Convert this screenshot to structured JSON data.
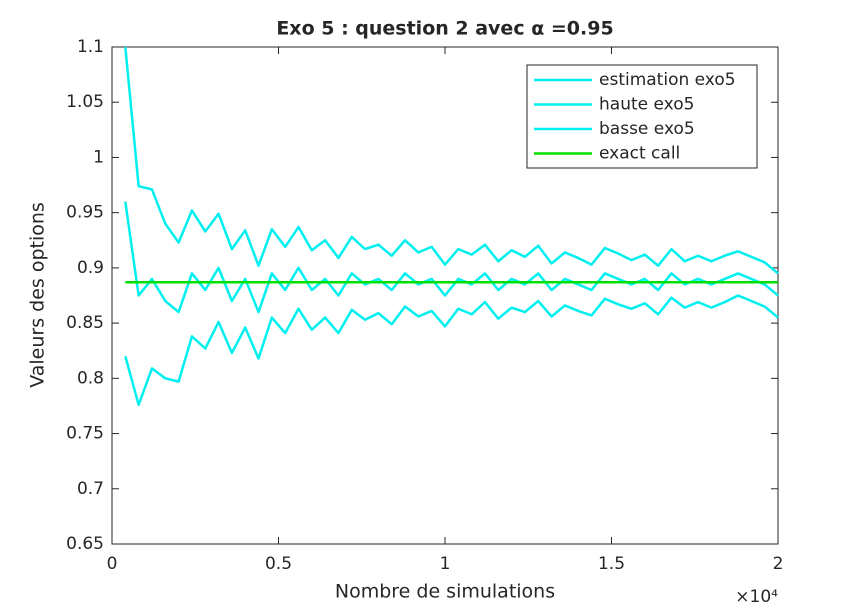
{
  "chart_data": {
    "type": "line",
    "title": "Exo 5 : question 2 avec α =0.95",
    "xlabel": "Nombre de simulations",
    "ylabel": "Valeurs des options",
    "x_multiplier": "×10⁴",
    "x": [
      400,
      800,
      1200,
      1600,
      2000,
      2400,
      2800,
      3200,
      3600,
      4000,
      4400,
      4800,
      5200,
      5600,
      6000,
      6400,
      6800,
      7200,
      7600,
      8000,
      8400,
      8800,
      9200,
      9600,
      10000,
      10400,
      10800,
      11200,
      11600,
      12000,
      12400,
      12800,
      13200,
      13600,
      14000,
      14400,
      14800,
      15200,
      15600,
      16000,
      16400,
      16800,
      17200,
      17600,
      18000,
      18400,
      18800,
      19200,
      19600,
      20000
    ],
    "series": [
      {
        "name": "estimation exo5",
        "color": "#00f0f0",
        "values": [
          0.96,
          0.875,
          0.89,
          0.87,
          0.86,
          0.895,
          0.88,
          0.9,
          0.87,
          0.89,
          0.86,
          0.895,
          0.88,
          0.9,
          0.88,
          0.89,
          0.875,
          0.895,
          0.885,
          0.89,
          0.88,
          0.895,
          0.885,
          0.89,
          0.875,
          0.89,
          0.885,
          0.895,
          0.88,
          0.89,
          0.885,
          0.895,
          0.88,
          0.89,
          0.885,
          0.88,
          0.895,
          0.89,
          0.885,
          0.89,
          0.88,
          0.895,
          0.885,
          0.89,
          0.885,
          0.89,
          0.895,
          0.89,
          0.885,
          0.875
        ]
      },
      {
        "name": "haute exo5",
        "color": "#00f0f0",
        "values": [
          1.1,
          0.974,
          0.971,
          0.94,
          0.923,
          0.952,
          0.933,
          0.949,
          0.917,
          0.934,
          0.902,
          0.935,
          0.919,
          0.937,
          0.916,
          0.925,
          0.909,
          0.928,
          0.917,
          0.921,
          0.911,
          0.925,
          0.914,
          0.919,
          0.903,
          0.917,
          0.912,
          0.921,
          0.906,
          0.916,
          0.91,
          0.92,
          0.904,
          0.914,
          0.909,
          0.903,
          0.918,
          0.913,
          0.907,
          0.912,
          0.902,
          0.917,
          0.906,
          0.911,
          0.906,
          0.911,
          0.915,
          0.91,
          0.905,
          0.895
        ]
      },
      {
        "name": "basse exo5",
        "color": "#00f0f0",
        "values": [
          0.82,
          0.776,
          0.809,
          0.8,
          0.797,
          0.838,
          0.827,
          0.851,
          0.823,
          0.846,
          0.818,
          0.855,
          0.841,
          0.863,
          0.844,
          0.855,
          0.841,
          0.862,
          0.853,
          0.859,
          0.849,
          0.865,
          0.856,
          0.861,
          0.847,
          0.863,
          0.858,
          0.869,
          0.854,
          0.864,
          0.86,
          0.87,
          0.856,
          0.866,
          0.861,
          0.857,
          0.872,
          0.867,
          0.863,
          0.868,
          0.858,
          0.873,
          0.864,
          0.869,
          0.864,
          0.869,
          0.875,
          0.87,
          0.865,
          0.855
        ]
      },
      {
        "name": "exact call",
        "color": "#00e000",
        "values": [
          0.887,
          0.887,
          0.887,
          0.887,
          0.887,
          0.887,
          0.887,
          0.887,
          0.887,
          0.887,
          0.887,
          0.887,
          0.887,
          0.887,
          0.887,
          0.887,
          0.887,
          0.887,
          0.887,
          0.887,
          0.887,
          0.887,
          0.887,
          0.887,
          0.887,
          0.887,
          0.887,
          0.887,
          0.887,
          0.887,
          0.887,
          0.887,
          0.887,
          0.887,
          0.887,
          0.887,
          0.887,
          0.887,
          0.887,
          0.887,
          0.887,
          0.887,
          0.887,
          0.887,
          0.887,
          0.887,
          0.887,
          0.887,
          0.887,
          0.887
        ]
      }
    ],
    "xlim": [
      0,
      20000
    ],
    "xticks": [
      0,
      {
        "value": 5000,
        "label": "0.5"
      },
      {
        "value": 10000,
        "label": "1"
      },
      {
        "value": 15000,
        "label": "1.5"
      },
      {
        "value": 20000,
        "label": "2"
      }
    ],
    "ylim": [
      0.65,
      1.1
    ],
    "yticks": [
      0.65,
      0.7,
      0.75,
      0.8,
      0.85,
      0.9,
      0.95,
      1,
      1.05,
      1.1
    ],
    "legend": "northeast"
  }
}
